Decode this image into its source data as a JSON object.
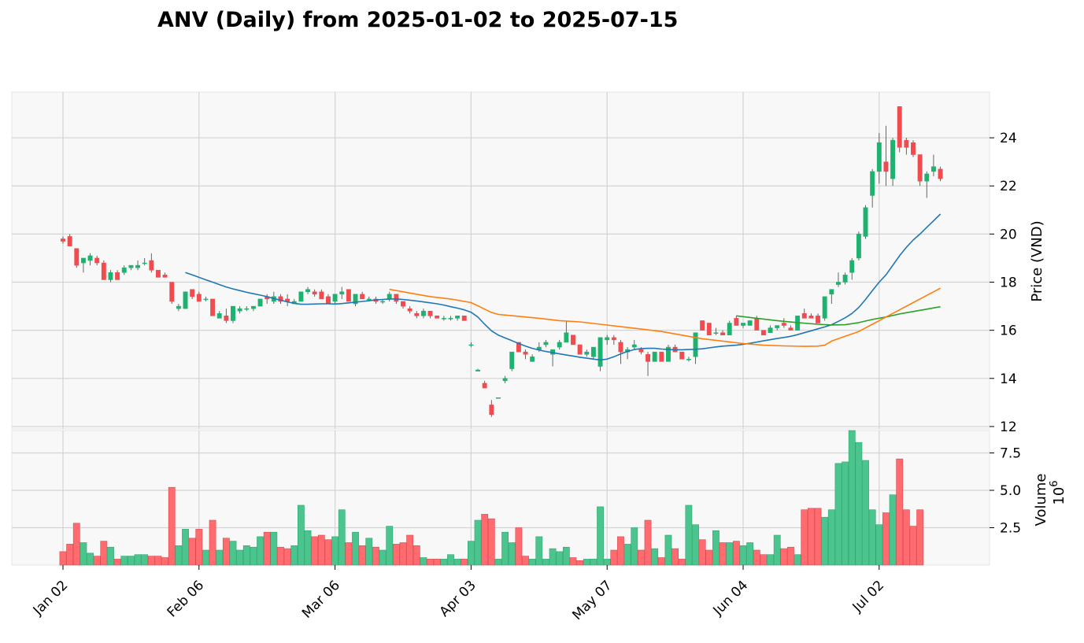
{
  "chart_data": {
    "type": "candlestick",
    "title": "ANV (Daily) from 2025-01-02 to 2025-07-15",
    "ylabel": "Price (VND)",
    "volume_label": "Volume",
    "volume_exponent": "10",
    "volume_exponent_power": "6",
    "ylim": [
      11.9,
      25.9
    ],
    "yticks": [
      12,
      14,
      16,
      18,
      20,
      22,
      24
    ],
    "volume_ylim": [
      0,
      9.0
    ],
    "volume_yticks": [
      2.5,
      5.0,
      7.5
    ],
    "volume_ytick_labels": [
      "2.5",
      "5.0",
      "7.5"
    ],
    "grid": true,
    "colors": {
      "up": "#1db36f",
      "down": "#f04b4f",
      "up_volume": "#4cc48e",
      "down_volume": "#ff6b6f",
      "ma_short": "#1f77b4",
      "ma_mid": "#2ca02c",
      "ma_long": "#ff7f0e",
      "panel_bg": "#f8f8f8",
      "grid": "#d3d3d3"
    },
    "xtick_labels": [
      {
        "label": "Jan 02",
        "index": 0
      },
      {
        "label": "Feb 06",
        "index": 20
      },
      {
        "label": "Mar 06",
        "index": 40
      },
      {
        "label": "Apr 03",
        "index": 60
      },
      {
        "label": "May 07",
        "index": 80
      },
      {
        "label": "Jun 04",
        "index": 100
      },
      {
        "label": "Jul 02",
        "index": 120
      }
    ],
    "candles": [
      [
        19.8,
        19.9,
        19.6,
        19.7
      ],
      [
        19.9,
        20.0,
        19.5,
        19.5
      ],
      [
        19.4,
        19.4,
        18.6,
        18.7
      ],
      [
        18.8,
        19.0,
        18.4,
        19.0
      ],
      [
        18.9,
        19.2,
        18.7,
        19.1
      ],
      [
        19.0,
        19.1,
        18.7,
        18.8
      ],
      [
        18.8,
        18.9,
        18.1,
        18.1
      ],
      [
        18.1,
        18.5,
        18.0,
        18.4
      ],
      [
        18.4,
        18.5,
        18.1,
        18.1
      ],
      [
        18.4,
        18.7,
        18.3,
        18.6
      ],
      [
        18.6,
        18.7,
        18.5,
        18.7
      ],
      [
        18.6,
        18.9,
        18.5,
        18.7
      ],
      [
        18.8,
        19.0,
        18.7,
        18.8
      ],
      [
        18.9,
        19.2,
        18.4,
        18.5
      ],
      [
        18.5,
        18.5,
        18.2,
        18.2
      ],
      [
        18.3,
        18.4,
        18.2,
        18.2
      ],
      [
        18.0,
        18.0,
        17.1,
        17.2
      ],
      [
        16.9,
        17.1,
        16.8,
        17.0
      ],
      [
        16.9,
        17.6,
        16.9,
        17.6
      ],
      [
        17.7,
        17.7,
        17.3,
        17.4
      ],
      [
        17.5,
        17.6,
        17.2,
        17.2
      ],
      [
        17.3,
        17.4,
        17.2,
        17.3
      ],
      [
        17.3,
        17.3,
        16.6,
        16.6
      ],
      [
        16.5,
        16.8,
        16.5,
        16.7
      ],
      [
        16.6,
        16.9,
        16.3,
        16.4
      ],
      [
        16.4,
        17.0,
        16.3,
        17.0
      ],
      [
        16.8,
        17.0,
        16.7,
        16.9
      ],
      [
        16.9,
        17.0,
        16.8,
        16.9
      ],
      [
        16.9,
        17.0,
        16.8,
        17.0
      ],
      [
        17.0,
        17.3,
        17.0,
        17.3
      ],
      [
        17.4,
        17.5,
        17.1,
        17.3
      ],
      [
        17.2,
        17.6,
        17.1,
        17.4
      ],
      [
        17.4,
        17.5,
        17.1,
        17.2
      ],
      [
        17.3,
        17.5,
        17.0,
        17.2
      ],
      [
        17.1,
        17.3,
        17.1,
        17.2
      ],
      [
        17.2,
        17.6,
        17.2,
        17.6
      ],
      [
        17.6,
        17.8,
        17.5,
        17.7
      ],
      [
        17.6,
        17.7,
        17.4,
        17.5
      ],
      [
        17.6,
        17.7,
        17.3,
        17.3
      ],
      [
        17.4,
        17.5,
        17.1,
        17.1
      ],
      [
        17.2,
        17.5,
        17.1,
        17.5
      ],
      [
        17.5,
        17.8,
        17.3,
        17.6
      ],
      [
        17.7,
        17.7,
        17.2,
        17.2
      ],
      [
        17.1,
        17.5,
        17.0,
        17.5
      ],
      [
        17.5,
        17.6,
        17.3,
        17.3
      ],
      [
        17.3,
        17.4,
        17.2,
        17.3
      ],
      [
        17.3,
        17.4,
        17.1,
        17.2
      ],
      [
        17.2,
        17.3,
        17.1,
        17.2
      ],
      [
        17.3,
        17.6,
        17.2,
        17.5
      ],
      [
        17.5,
        17.5,
        17.1,
        17.2
      ],
      [
        17.2,
        17.2,
        16.9,
        17.0
      ],
      [
        16.9,
        17.0,
        16.7,
        16.8
      ],
      [
        16.7,
        16.8,
        16.5,
        16.6
      ],
      [
        16.6,
        16.9,
        16.5,
        16.8
      ],
      [
        16.8,
        16.8,
        16.5,
        16.6
      ],
      [
        16.6,
        16.6,
        16.5,
        16.5
      ],
      [
        16.5,
        16.6,
        16.4,
        16.5
      ],
      [
        16.5,
        16.6,
        16.4,
        16.5
      ],
      [
        16.5,
        16.6,
        16.4,
        16.6
      ],
      [
        16.6,
        16.6,
        16.4,
        16.4
      ],
      [
        15.4,
        15.5,
        15.3,
        15.4
      ],
      [
        14.3,
        14.4,
        14.3,
        14.35
      ],
      [
        13.8,
        13.9,
        13.6,
        13.6
      ],
      [
        12.9,
        13.1,
        12.4,
        12.5
      ],
      [
        13.2,
        13.2,
        13.2,
        13.2
      ],
      [
        13.9,
        14.1,
        13.8,
        14.0
      ],
      [
        14.4,
        15.1,
        14.3,
        15.1
      ],
      [
        15.5,
        15.5,
        15.1,
        15.1
      ],
      [
        15.1,
        15.2,
        14.8,
        15.0
      ],
      [
        14.7,
        15.0,
        14.7,
        14.9
      ],
      [
        15.2,
        15.5,
        15.1,
        15.3
      ],
      [
        15.4,
        15.6,
        15.3,
        15.5
      ],
      [
        15.0,
        15.2,
        14.5,
        15.2
      ],
      [
        15.3,
        15.6,
        15.2,
        15.5
      ],
      [
        15.5,
        16.4,
        15.5,
        15.9
      ],
      [
        15.8,
        15.8,
        15.4,
        15.4
      ],
      [
        15.4,
        15.4,
        15.0,
        15.0
      ],
      [
        15.0,
        15.2,
        14.9,
        15.1
      ],
      [
        14.9,
        15.3,
        14.8,
        15.3
      ],
      [
        14.5,
        15.6,
        14.3,
        15.7
      ],
      [
        15.6,
        15.8,
        15.4,
        15.7
      ],
      [
        15.7,
        15.8,
        15.4,
        15.6
      ],
      [
        15.5,
        15.6,
        14.6,
        15.1
      ],
      [
        15.1,
        15.3,
        14.8,
        15.2
      ],
      [
        15.3,
        15.6,
        15.2,
        15.4
      ],
      [
        15.2,
        15.3,
        15.0,
        15.1
      ],
      [
        15.0,
        15.1,
        14.1,
        14.7
      ],
      [
        14.7,
        15.1,
        14.7,
        15.1
      ],
      [
        15.1,
        15.1,
        14.7,
        14.7
      ],
      [
        14.7,
        15.4,
        14.7,
        15.3
      ],
      [
        15.3,
        15.4,
        15.1,
        15.1
      ],
      [
        15.1,
        15.1,
        14.8,
        14.8
      ],
      [
        14.8,
        14.9,
        14.7,
        14.8
      ],
      [
        14.9,
        15.9,
        14.6,
        15.9
      ],
      [
        16.4,
        16.4,
        16.0,
        16.0
      ],
      [
        16.3,
        16.3,
        15.8,
        15.8
      ],
      [
        15.9,
        16.1,
        15.8,
        15.9
      ],
      [
        15.9,
        16.0,
        15.8,
        15.8
      ],
      [
        15.8,
        16.4,
        15.8,
        16.3
      ],
      [
        16.5,
        16.6,
        16.2,
        16.2
      ],
      [
        16.2,
        16.3,
        16.1,
        16.3
      ],
      [
        16.2,
        16.4,
        16.2,
        16.4
      ],
      [
        16.5,
        16.6,
        16.0,
        16.0
      ],
      [
        16.0,
        16.0,
        15.8,
        15.8
      ],
      [
        15.9,
        16.2,
        15.9,
        16.1
      ],
      [
        16.1,
        16.2,
        16.0,
        16.2
      ],
      [
        16.3,
        16.5,
        16.1,
        16.2
      ],
      [
        16.1,
        16.2,
        16.0,
        16.0
      ],
      [
        16.0,
        16.6,
        16.0,
        16.6
      ],
      [
        16.7,
        16.9,
        16.5,
        16.5
      ],
      [
        16.6,
        16.7,
        16.5,
        16.5
      ],
      [
        16.6,
        16.7,
        16.3,
        16.3
      ],
      [
        16.5,
        17.4,
        16.4,
        17.4
      ],
      [
        17.5,
        17.7,
        17.1,
        17.7
      ],
      [
        17.9,
        18.4,
        17.8,
        18.0
      ],
      [
        18.0,
        18.4,
        17.9,
        18.3
      ],
      [
        18.4,
        19.0,
        18.1,
        18.9
      ],
      [
        19.0,
        20.1,
        18.9,
        20.0
      ],
      [
        19.9,
        21.2,
        19.8,
        21.1
      ],
      [
        21.6,
        22.7,
        21.1,
        22.6
      ],
      [
        22.6,
        24.2,
        22.1,
        23.8
      ],
      [
        23.0,
        24.5,
        22.0,
        22.6
      ],
      [
        22.3,
        24.0,
        22.0,
        23.9
      ],
      [
        25.3,
        25.3,
        23.4,
        23.6
      ],
      [
        23.9,
        24.0,
        23.3,
        23.6
      ],
      [
        23.8,
        23.9,
        23.2,
        23.3
      ],
      [
        23.3,
        23.3,
        22.0,
        22.2
      ],
      [
        22.2,
        22.6,
        21.5,
        22.5
      ],
      [
        22.6,
        23.3,
        22.4,
        22.8
      ],
      [
        22.7,
        22.8,
        22.2,
        22.3
      ]
    ],
    "volumes": [
      0.9,
      1.4,
      2.8,
      1.5,
      0.8,
      0.6,
      1.6,
      1.2,
      0.4,
      0.6,
      0.6,
      0.7,
      0.7,
      0.6,
      0.6,
      0.5,
      5.2,
      1.3,
      2.4,
      1.8,
      2.4,
      1.0,
      3.0,
      1.0,
      1.8,
      1.6,
      1.0,
      1.3,
      1.2,
      1.9,
      2.2,
      2.2,
      1.2,
      1.1,
      1.3,
      4.0,
      2.3,
      1.9,
      2.0,
      1.7,
      1.9,
      3.7,
      1.5,
      2.2,
      1.3,
      1.8,
      1.2,
      1.0,
      2.6,
      1.4,
      1.5,
      2.0,
      1.3,
      0.5,
      0.4,
      0.4,
      0.4,
      0.7,
      0.4,
      0.4,
      1.6,
      3.0,
      3.4,
      3.1,
      0.4,
      2.2,
      1.5,
      2.5,
      0.6,
      0.4,
      1.9,
      0.4,
      1.1,
      0.9,
      1.2,
      0.5,
      0.3,
      0.4,
      0.4,
      3.9,
      0.4,
      1.0,
      1.9,
      1.4,
      2.5,
      1.0,
      3.0,
      1.1,
      0.5,
      2.0,
      1.1,
      0.4,
      4.0,
      2.7,
      1.7,
      1.0,
      2.3,
      1.5,
      1.5,
      1.6,
      1.3,
      1.5,
      1.0,
      0.7,
      0.7,
      2.0,
      1.1,
      1.2,
      0.7,
      3.7,
      3.8,
      3.8,
      3.2,
      3.7,
      6.8,
      6.9,
      9.0,
      8.2,
      7.0,
      3.7,
      2.7,
      3.5,
      4.7,
      7.1,
      3.7,
      2.6,
      3.7
    ],
    "ma_short_points": [
      [
        18,
        18.4
      ],
      [
        19,
        18.3
      ],
      [
        20,
        18.2
      ],
      [
        21,
        18.1
      ],
      [
        22,
        18.0
      ],
      [
        23,
        17.9
      ],
      [
        24,
        17.8
      ],
      [
        25,
        17.72
      ],
      [
        26,
        17.65
      ],
      [
        27,
        17.58
      ],
      [
        28,
        17.52
      ],
      [
        29,
        17.46
      ],
      [
        30,
        17.4
      ],
      [
        31,
        17.32
      ],
      [
        32,
        17.25
      ],
      [
        33,
        17.18
      ],
      [
        34,
        17.12
      ],
      [
        35,
        17.08
      ],
      [
        36,
        17.08
      ],
      [
        37,
        17.09
      ],
      [
        38,
        17.1
      ],
      [
        39,
        17.1
      ],
      [
        40,
        17.09
      ],
      [
        41,
        17.11
      ],
      [
        42,
        17.14
      ],
      [
        43,
        17.17
      ],
      [
        44,
        17.2
      ],
      [
        45,
        17.23
      ],
      [
        46,
        17.26
      ],
      [
        47,
        17.28
      ],
      [
        48,
        17.3
      ],
      [
        49,
        17.3
      ],
      [
        50,
        17.28
      ],
      [
        51,
        17.25
      ],
      [
        52,
        17.22
      ],
      [
        53,
        17.18
      ],
      [
        54,
        17.14
      ],
      [
        55,
        17.1
      ],
      [
        56,
        17.05
      ],
      [
        57,
        16.98
      ],
      [
        58,
        16.92
      ],
      [
        59,
        16.85
      ],
      [
        60,
        16.75
      ],
      [
        61,
        16.55
      ],
      [
        62,
        16.25
      ],
      [
        63,
        15.98
      ],
      [
        64,
        15.8
      ],
      [
        65,
        15.68
      ],
      [
        66,
        15.57
      ],
      [
        67,
        15.45
      ],
      [
        68,
        15.34
      ],
      [
        69,
        15.25
      ],
      [
        70,
        15.18
      ],
      [
        71,
        15.12
      ],
      [
        72,
        15.07
      ],
      [
        73,
        15.02
      ],
      [
        74,
        14.97
      ],
      [
        75,
        14.93
      ],
      [
        76,
        14.88
      ],
      [
        77,
        14.84
      ],
      [
        78,
        14.8
      ],
      [
        79,
        14.77
      ],
      [
        80,
        14.8
      ],
      [
        81,
        14.9
      ],
      [
        82,
        15.02
      ],
      [
        83,
        15.12
      ],
      [
        84,
        15.2
      ],
      [
        85,
        15.24
      ],
      [
        86,
        15.25
      ],
      [
        87,
        15.25
      ],
      [
        88,
        15.22
      ],
      [
        89,
        15.2
      ],
      [
        90,
        15.19
      ],
      [
        91,
        15.19
      ],
      [
        92,
        15.2
      ],
      [
        93,
        15.21
      ],
      [
        94,
        15.23
      ],
      [
        95,
        15.27
      ],
      [
        96,
        15.31
      ],
      [
        97,
        15.34
      ],
      [
        98,
        15.36
      ],
      [
        99,
        15.38
      ],
      [
        100,
        15.42
      ],
      [
        101,
        15.46
      ],
      [
        102,
        15.51
      ],
      [
        103,
        15.56
      ],
      [
        104,
        15.61
      ],
      [
        105,
        15.66
      ],
      [
        106,
        15.7
      ],
      [
        107,
        15.75
      ],
      [
        108,
        15.82
      ],
      [
        109,
        15.9
      ],
      [
        110,
        15.98
      ],
      [
        111,
        16.06
      ],
      [
        112,
        16.14
      ],
      [
        113,
        16.23
      ],
      [
        114,
        16.37
      ],
      [
        115,
        16.52
      ],
      [
        116,
        16.7
      ],
      [
        117,
        16.95
      ],
      [
        118,
        17.28
      ],
      [
        119,
        17.65
      ],
      [
        120,
        18.0
      ],
      [
        121,
        18.3
      ],
      [
        122,
        18.7
      ],
      [
        123,
        19.1
      ],
      [
        124,
        19.45
      ],
      [
        125,
        19.75
      ],
      [
        126,
        20.0
      ],
      [
        127,
        20.28
      ],
      [
        128,
        20.55
      ],
      [
        129,
        20.83
      ]
    ],
    "ma_mid_points": [
      [
        99,
        16.6
      ],
      [
        102,
        16.5
      ],
      [
        105,
        16.4
      ],
      [
        108,
        16.32
      ],
      [
        111,
        16.25
      ],
      [
        113,
        16.22
      ],
      [
        115,
        16.23
      ],
      [
        117,
        16.32
      ],
      [
        119,
        16.45
      ],
      [
        121,
        16.55
      ],
      [
        123,
        16.68
      ],
      [
        125,
        16.78
      ],
      [
        127,
        16.88
      ],
      [
        129,
        16.98
      ]
    ],
    "ma_long_points": [
      [
        48,
        17.7
      ],
      [
        51,
        17.55
      ],
      [
        54,
        17.4
      ],
      [
        57,
        17.3
      ],
      [
        60,
        17.15
      ],
      [
        61,
        17.02
      ],
      [
        62,
        16.88
      ],
      [
        63,
        16.74
      ],
      [
        64,
        16.66
      ],
      [
        67,
        16.58
      ],
      [
        70,
        16.5
      ],
      [
        73,
        16.4
      ],
      [
        76,
        16.35
      ],
      [
        79,
        16.25
      ],
      [
        82,
        16.15
      ],
      [
        85,
        16.05
      ],
      [
        88,
        15.95
      ],
      [
        91,
        15.8
      ],
      [
        94,
        15.65
      ],
      [
        97,
        15.55
      ],
      [
        100,
        15.45
      ],
      [
        103,
        15.38
      ],
      [
        106,
        15.35
      ],
      [
        109,
        15.33
      ],
      [
        111,
        15.34
      ],
      [
        112,
        15.38
      ],
      [
        113,
        15.55
      ],
      [
        115,
        15.75
      ],
      [
        117,
        15.95
      ],
      [
        119,
        16.25
      ],
      [
        121,
        16.55
      ],
      [
        123,
        16.85
      ],
      [
        125,
        17.15
      ],
      [
        127,
        17.45
      ],
      [
        129,
        17.75
      ]
    ]
  }
}
